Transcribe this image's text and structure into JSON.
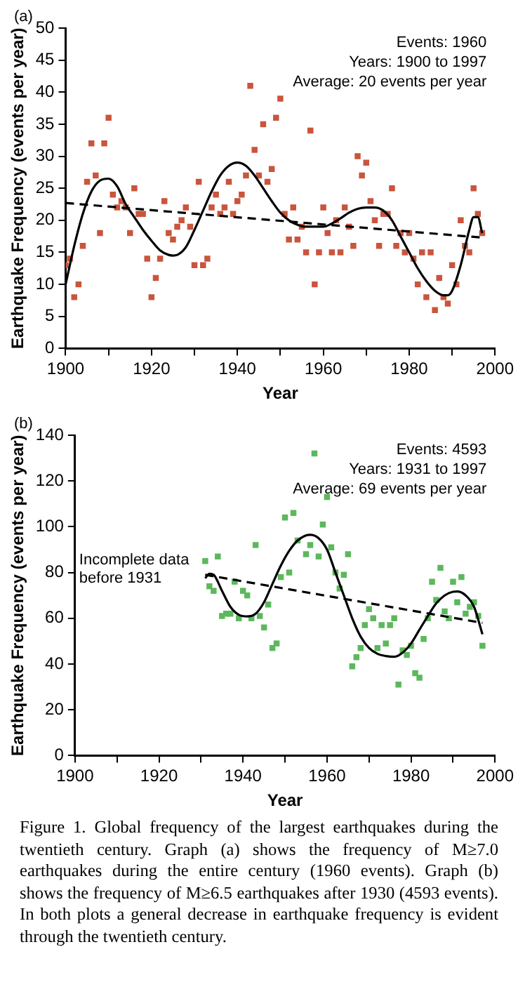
{
  "chart_data": [
    {
      "type": "scatter",
      "title": "(a)",
      "xlabel": "Year",
      "ylabel": "Earthquake Frequency (events per year)",
      "xlim": [
        1900,
        2000
      ],
      "xticks": [
        1900,
        {
          "value": 1910,
          "label": null
        },
        1920,
        {
          "value": 1930,
          "label": null
        },
        1940,
        {
          "value": 1950,
          "label": null
        },
        1960,
        {
          "value": 1970,
          "label": null
        },
        1980,
        {
          "value": 1990,
          "label": null
        },
        2000
      ],
      "ylim": [
        0,
        50
      ],
      "yticks": [
        0,
        5,
        10,
        15,
        20,
        25,
        30,
        35,
        40,
        45,
        50
      ],
      "grid": false,
      "legend": false,
      "annotations": [
        "Events: 1960",
        "Years: 1900 to 1997",
        "Average: 20 events per year"
      ],
      "series": [
        {
          "marker": "square",
          "color": "#c9553c",
          "x": [
            1900,
            1901,
            1902,
            1903,
            1904,
            1905,
            1906,
            1907,
            1908,
            1909,
            1910,
            1911,
            1912,
            1913,
            1914,
            1915,
            1916,
            1917,
            1918,
            1919,
            1920,
            1921,
            1922,
            1923,
            1924,
            1925,
            1926,
            1927,
            1928,
            1929,
            1930,
            1931,
            1932,
            1933,
            1934,
            1935,
            1936,
            1937,
            1938,
            1939,
            1940,
            1941,
            1942,
            1943,
            1944,
            1945,
            1946,
            1947,
            1948,
            1949,
            1950,
            1951,
            1952,
            1953,
            1954,
            1955,
            1956,
            1957,
            1958,
            1959,
            1960,
            1961,
            1962,
            1963,
            1964,
            1965,
            1966,
            1967,
            1968,
            1969,
            1970,
            1971,
            1972,
            1973,
            1974,
            1975,
            1976,
            1977,
            1978,
            1979,
            1980,
            1981,
            1982,
            1983,
            1984,
            1985,
            1986,
            1987,
            1988,
            1989,
            1990,
            1991,
            1992,
            1993,
            1994,
            1995,
            1996,
            1997
          ],
          "values": [
            13,
            14,
            8,
            10,
            16,
            26,
            32,
            27,
            18,
            32,
            36,
            24,
            22,
            23,
            22,
            18,
            25,
            21,
            21,
            14,
            8,
            11,
            14,
            23,
            18,
            17,
            19,
            20,
            22,
            19,
            13,
            26,
            13,
            14,
            22,
            24,
            21,
            22,
            26,
            21,
            23,
            24,
            27,
            41,
            31,
            27,
            35,
            26,
            28,
            36,
            39,
            21,
            17,
            22,
            17,
            19,
            15,
            34,
            10,
            15,
            22,
            18,
            15,
            20,
            15,
            22,
            19,
            16,
            30,
            27,
            29,
            23,
            20,
            16,
            21,
            21,
            25,
            16,
            18,
            15,
            18,
            14,
            10,
            15,
            8,
            15,
            6,
            11,
            8,
            7,
            13,
            10,
            20,
            16,
            15,
            25,
            21,
            18
          ]
        },
        {
          "type": "line",
          "marker": "none",
          "line_style": "solid",
          "color": "#000000",
          "x": [
            1900,
            1902,
            1904,
            1906,
            1908,
            1910,
            1912,
            1914,
            1916,
            1918,
            1920,
            1922,
            1924,
            1925,
            1926,
            1928,
            1930,
            1932,
            1934,
            1936,
            1938,
            1940,
            1942,
            1944,
            1946,
            1948,
            1950,
            1952,
            1954,
            1956,
            1958,
            1960,
            1962,
            1964,
            1966,
            1968,
            1970,
            1972,
            1974,
            1976,
            1978,
            1980,
            1982,
            1984,
            1986,
            1988,
            1989,
            1990,
            1992,
            1994,
            1995,
            1996,
            1997
          ],
          "values": [
            10,
            16,
            21,
            24.5,
            26.2,
            26.5,
            25.3,
            22.5,
            20.5,
            18.5,
            16.8,
            15.3,
            14.6,
            14.5,
            14.6,
            15.8,
            18.5,
            21.5,
            24.5,
            27,
            28.5,
            29,
            28.5,
            27,
            25,
            23,
            21.2,
            20,
            19.3,
            19,
            19,
            19,
            19.5,
            20.3,
            21.2,
            21.8,
            22,
            22,
            21.5,
            20,
            17.5,
            15,
            12.5,
            10.5,
            9,
            8.3,
            8.3,
            9,
            13,
            18.5,
            20.5,
            20.5,
            18
          ]
        },
        {
          "type": "line",
          "marker": "none",
          "line_style": "dashed",
          "color": "#000000",
          "x": [
            1900,
            1997
          ],
          "values": [
            22.7,
            17.3
          ]
        }
      ]
    },
    {
      "type": "scatter",
      "title": "(b)",
      "xlabel": "Year",
      "ylabel": "Earthquake Frequency (events per year)",
      "xlim": [
        1900,
        2000
      ],
      "xticks": [
        1900,
        {
          "value": 1910,
          "label": null
        },
        1920,
        {
          "value": 1930,
          "label": null
        },
        1940,
        {
          "value": 1950,
          "label": null
        },
        1960,
        {
          "value": 1970,
          "label": null
        },
        1980,
        {
          "value": 1990,
          "label": null
        },
        2000
      ],
      "ylim": [
        0,
        140
      ],
      "yticks": [
        0,
        20,
        40,
        60,
        80,
        100,
        120,
        140
      ],
      "grid": false,
      "legend": false,
      "annotations": [
        "Events: 4593",
        "Years: 1931 to 1997",
        "Average: 69 events per year",
        "Incomplete data\nbefore 1931",
        "Figure 1. Global frequency of the largest earthquakes during the twentieth century. Graph (a) shows the frequency of M≥7.0 earthquakes during the entire century (1960 events). Graph (b) shows the frequency of M≥6.5 earthquakes after 1930 (4593 events). In both plots a general decrease in earthquake frequency is evident through the twentieth century."
      ],
      "series": [
        {
          "marker": "square",
          "color": "#5cb85c",
          "x": [
            1931,
            1932,
            1933,
            1934,
            1935,
            1936,
            1937,
            1938,
            1939,
            1940,
            1941,
            1942,
            1943,
            1944,
            1945,
            1946,
            1947,
            1948,
            1949,
            1950,
            1951,
            1952,
            1953,
            1955,
            1956,
            1957,
            1958,
            1959,
            1960,
            1961,
            1962,
            1963,
            1964,
            1965,
            1966,
            1967,
            1968,
            1969,
            1970,
            1971,
            1972,
            1973,
            1974,
            1975,
            1976,
            1977,
            1978,
            1979,
            1980,
            1981,
            1982,
            1983,
            1984,
            1985,
            1986,
            1987,
            1988,
            1989,
            1990,
            1991,
            1992,
            1993,
            1994,
            1995,
            1996,
            1997
          ],
          "values": [
            85,
            74,
            72,
            87,
            61,
            62,
            62,
            76,
            60,
            72,
            70,
            60,
            92,
            61,
            56,
            66,
            47,
            49,
            78,
            104,
            80,
            106,
            94,
            88,
            92,
            132,
            87,
            101,
            113,
            91,
            80,
            73,
            79,
            88,
            39,
            43,
            47,
            57,
            64,
            60,
            47,
            57,
            49,
            57,
            60,
            31,
            46,
            44,
            48,
            36,
            34,
            51,
            60,
            76,
            68,
            82,
            63,
            60,
            76,
            67,
            78,
            62,
            65,
            67,
            61,
            48
          ]
        },
        {
          "type": "line",
          "marker": "none",
          "line_style": "solid",
          "color": "#000000",
          "x": [
            1931,
            1932,
            1933,
            1935,
            1937,
            1939,
            1941,
            1943,
            1945,
            1947,
            1949,
            1951,
            1953,
            1955,
            1956,
            1958,
            1960,
            1962,
            1964,
            1966,
            1968,
            1970,
            1972,
            1974,
            1976,
            1978,
            1980,
            1982,
            1984,
            1986,
            1988,
            1990,
            1991,
            1993,
            1995,
            1997
          ],
          "values": [
            77.5,
            79.5,
            79,
            72,
            65,
            61.5,
            60.8,
            62,
            67,
            75,
            83,
            89.5,
            94,
            96.2,
            96.5,
            95,
            90,
            80,
            70,
            60,
            52,
            47,
            44.5,
            43.5,
            43.2,
            45,
            49,
            55,
            61,
            66.5,
            70,
            71.6,
            71.7,
            70,
            65,
            53
          ]
        },
        {
          "type": "line",
          "marker": "none",
          "line_style": "dashed",
          "color": "#000000",
          "x": [
            1931,
            1997
          ],
          "values": [
            79,
            58
          ]
        }
      ]
    }
  ]
}
